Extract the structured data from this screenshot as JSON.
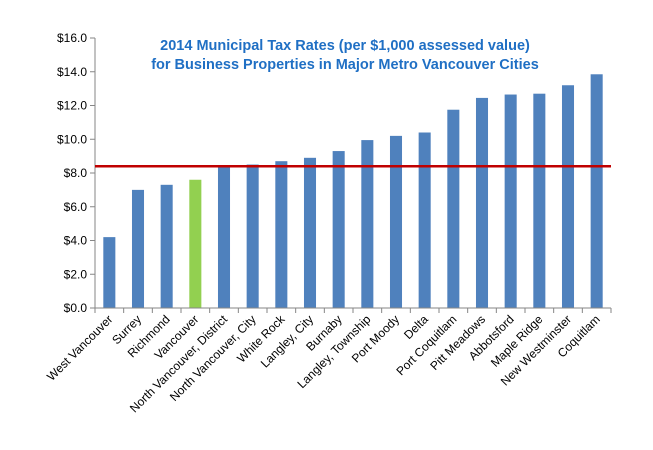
{
  "chart_data": {
    "type": "bar",
    "title_lines": [
      "2014 Municipal Tax Rates (per $1,000 assessed value)",
      "for Business Properties in Major Metro Vancouver Cities"
    ],
    "xlabel": "",
    "ylabel": "",
    "ylim": [
      0,
      16
    ],
    "yticks": [
      0,
      2,
      4,
      6,
      8,
      10,
      12,
      14,
      16
    ],
    "ytick_labels": [
      "$0.0",
      "$2.0",
      "$4.0",
      "$6.0",
      "$8.0",
      "$10.0",
      "$12.0",
      "$14.0",
      "$16.0"
    ],
    "grid": false,
    "legend": false,
    "categories": [
      "West Vancouver",
      "Surrey",
      "Richmond",
      "Vancouver",
      "North Vancouver, District",
      "North Vancouver, City",
      "White Rock",
      "Langley, City",
      "Burnaby",
      "Langley, Township",
      "Port Moody",
      "Delta",
      "Port Coquitlam",
      "Pitt Meadows",
      "Abbotsford",
      "Maple Ridge",
      "New Westminster",
      "Coquitlam"
    ],
    "values": [
      4.2,
      7.0,
      7.3,
      7.6,
      8.4,
      8.5,
      8.7,
      8.9,
      9.3,
      9.95,
      10.2,
      10.4,
      11.75,
      12.45,
      12.65,
      12.7,
      13.2,
      13.85
    ],
    "highlight_index": 3,
    "reference_line_value": 8.4,
    "colors": {
      "bar": "#4f81bd",
      "highlight": "#92d050",
      "reference_line": "#c00000",
      "title": "#1f6fc4",
      "axis": "#868686"
    }
  }
}
